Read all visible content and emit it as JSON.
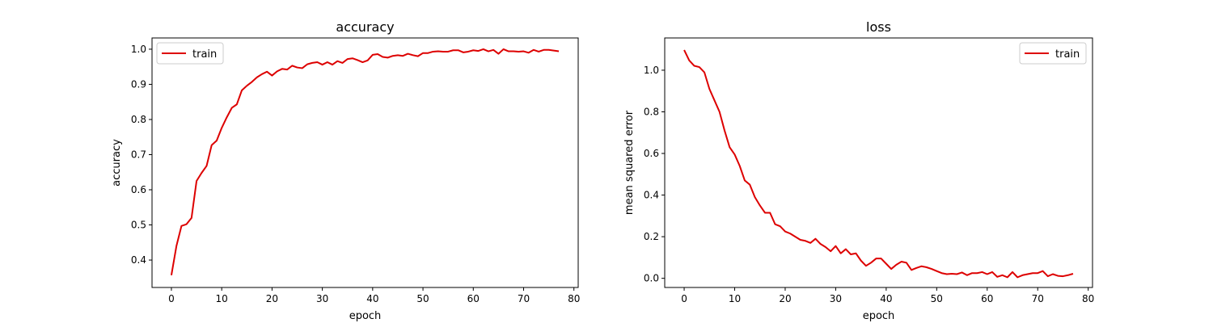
{
  "chart_data": [
    {
      "type": "line",
      "title": "accuracy",
      "xlabel": "epoch",
      "ylabel": "accuracy",
      "xlim": [
        -3.85,
        80.85
      ],
      "ylim": [
        0.322,
        1.032
      ],
      "xticks": [
        0,
        10,
        20,
        30,
        40,
        50,
        60,
        70,
        80
      ],
      "xtick_labels": [
        "0",
        "10",
        "20",
        "30",
        "40",
        "50",
        "60",
        "70",
        "80"
      ],
      "yticks": [
        0.4,
        0.5,
        0.6,
        0.7,
        0.8,
        0.9,
        1.0
      ],
      "ytick_labels": [
        "0.4",
        "0.5",
        "0.6",
        "0.7",
        "0.8",
        "0.9",
        "1.0"
      ],
      "grid": false,
      "legend_position": "top-left",
      "series": [
        {
          "name": "train",
          "color": "#dd0000",
          "x": [
            0,
            1,
            2,
            3,
            4,
            5,
            6,
            7,
            8,
            9,
            10,
            11,
            12,
            13,
            14,
            15,
            16,
            17,
            18,
            19,
            20,
            21,
            22,
            23,
            24,
            25,
            26,
            27,
            28,
            29,
            30,
            31,
            32,
            33,
            34,
            35,
            36,
            37,
            38,
            39,
            40,
            41,
            42,
            43,
            44,
            45,
            46,
            47,
            48,
            49,
            50,
            51,
            52,
            53,
            54,
            55,
            56,
            57,
            58,
            59,
            60,
            61,
            62,
            63,
            64,
            65,
            66,
            67,
            68,
            69,
            70,
            71,
            72,
            73,
            74,
            75,
            76,
            77
          ],
          "values": [
            0.357,
            0.44,
            0.497,
            0.502,
            0.52,
            0.625,
            0.648,
            0.668,
            0.727,
            0.74,
            0.776,
            0.806,
            0.833,
            0.843,
            0.883,
            0.896,
            0.907,
            0.92,
            0.929,
            0.936,
            0.925,
            0.937,
            0.944,
            0.942,
            0.953,
            0.948,
            0.946,
            0.957,
            0.961,
            0.963,
            0.956,
            0.963,
            0.956,
            0.966,
            0.961,
            0.972,
            0.974,
            0.969,
            0.963,
            0.968,
            0.984,
            0.986,
            0.978,
            0.976,
            0.981,
            0.983,
            0.981,
            0.987,
            0.983,
            0.98,
            0.989,
            0.989,
            0.993,
            0.994,
            0.993,
            0.993,
            0.997,
            0.997,
            0.991,
            0.993,
            0.997,
            0.995,
            1.0,
            0.994,
            0.998,
            0.987,
            1.0,
            0.994,
            0.994,
            0.993,
            0.994,
            0.99,
            0.998,
            0.993,
            0.998,
            0.998,
            0.996,
            0.994
          ]
        }
      ]
    },
    {
      "type": "line",
      "title": "loss",
      "xlabel": "epoch",
      "ylabel": "mean squared error",
      "xlim": [
        -3.85,
        80.85
      ],
      "ylim": [
        -0.044,
        1.155
      ],
      "xticks": [
        0,
        10,
        20,
        30,
        40,
        50,
        60,
        70,
        80
      ],
      "xtick_labels": [
        "0",
        "10",
        "20",
        "30",
        "40",
        "50",
        "60",
        "70",
        "80"
      ],
      "yticks": [
        0.0,
        0.2,
        0.4,
        0.6,
        0.8,
        1.0
      ],
      "ytick_labels": [
        "0.0",
        "0.2",
        "0.4",
        "0.6",
        "0.8",
        "1.0"
      ],
      "grid": false,
      "legend_position": "top-right",
      "series": [
        {
          "name": "train",
          "color": "#dd0000",
          "x": [
            0,
            1,
            2,
            3,
            4,
            5,
            6,
            7,
            8,
            9,
            10,
            11,
            12,
            13,
            14,
            15,
            16,
            17,
            18,
            19,
            20,
            21,
            22,
            23,
            24,
            25,
            26,
            27,
            28,
            29,
            30,
            31,
            32,
            33,
            34,
            35,
            36,
            37,
            38,
            39,
            40,
            41,
            42,
            43,
            44,
            45,
            46,
            47,
            48,
            49,
            50,
            51,
            52,
            53,
            54,
            55,
            56,
            57,
            58,
            59,
            60,
            61,
            62,
            63,
            64,
            65,
            66,
            67,
            68,
            69,
            70,
            71,
            72,
            73,
            74,
            75,
            76,
            77
          ],
          "values": [
            1.097,
            1.047,
            1.021,
            1.015,
            0.99,
            0.91,
            0.855,
            0.8,
            0.71,
            0.63,
            0.595,
            0.54,
            0.47,
            0.45,
            0.39,
            0.35,
            0.315,
            0.315,
            0.26,
            0.25,
            0.225,
            0.215,
            0.2,
            0.185,
            0.18,
            0.17,
            0.19,
            0.165,
            0.15,
            0.13,
            0.155,
            0.12,
            0.14,
            0.115,
            0.12,
            0.085,
            0.06,
            0.075,
            0.095,
            0.095,
            0.07,
            0.045,
            0.065,
            0.08,
            0.075,
            0.04,
            0.05,
            0.058,
            0.053,
            0.045,
            0.035,
            0.025,
            0.02,
            0.022,
            0.02,
            0.028,
            0.015,
            0.025,
            0.025,
            0.03,
            0.02,
            0.03,
            0.007,
            0.015,
            0.005,
            0.03,
            0.005,
            0.015,
            0.02,
            0.025,
            0.025,
            0.035,
            0.01,
            0.02,
            0.012,
            0.01,
            0.015,
            0.022
          ]
        }
      ]
    }
  ]
}
